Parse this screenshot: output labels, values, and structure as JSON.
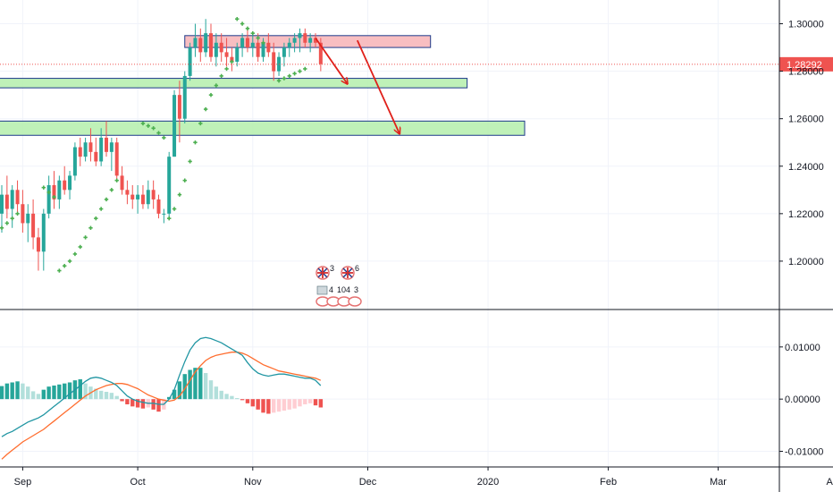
{
  "chart_data": [
    {
      "type": "candlestick",
      "pane": "price",
      "y_range": [
        1.18,
        1.31
      ],
      "y_ticks": [
        "1.30000",
        "1.28000",
        "1.26000",
        "1.24000",
        "1.22000",
        "1.20000"
      ],
      "y_tick_values": [
        1.3,
        1.28,
        1.26,
        1.24,
        1.22,
        1.2
      ],
      "last_price": "1.28292",
      "last_price_value": 1.28292,
      "candles": [
        {
          "o": 1.22,
          "h": 1.232,
          "l": 1.212,
          "c": 1.228
        },
        {
          "o": 1.228,
          "h": 1.236,
          "l": 1.218,
          "c": 1.222
        },
        {
          "o": 1.222,
          "h": 1.232,
          "l": 1.214,
          "c": 1.23
        },
        {
          "o": 1.23,
          "h": 1.234,
          "l": 1.22,
          "c": 1.224
        },
        {
          "o": 1.224,
          "h": 1.23,
          "l": 1.212,
          "c": 1.216
        },
        {
          "o": 1.216,
          "h": 1.224,
          "l": 1.208,
          "c": 1.22
        },
        {
          "o": 1.22,
          "h": 1.226,
          "l": 1.205,
          "c": 1.21
        },
        {
          "o": 1.21,
          "h": 1.214,
          "l": 1.196,
          "c": 1.204
        },
        {
          "o": 1.204,
          "h": 1.222,
          "l": 1.196,
          "c": 1.22
        },
        {
          "o": 1.22,
          "h": 1.236,
          "l": 1.218,
          "c": 1.232
        },
        {
          "o": 1.232,
          "h": 1.238,
          "l": 1.222,
          "c": 1.226
        },
        {
          "o": 1.226,
          "h": 1.236,
          "l": 1.222,
          "c": 1.234
        },
        {
          "o": 1.234,
          "h": 1.24,
          "l": 1.228,
          "c": 1.23
        },
        {
          "o": 1.23,
          "h": 1.238,
          "l": 1.226,
          "c": 1.236
        },
        {
          "o": 1.236,
          "h": 1.25,
          "l": 1.234,
          "c": 1.248
        },
        {
          "o": 1.248,
          "h": 1.252,
          "l": 1.24,
          "c": 1.244
        },
        {
          "o": 1.244,
          "h": 1.252,
          "l": 1.242,
          "c": 1.25
        },
        {
          "o": 1.25,
          "h": 1.256,
          "l": 1.242,
          "c": 1.246
        },
        {
          "o": 1.246,
          "h": 1.252,
          "l": 1.24,
          "c": 1.242
        },
        {
          "o": 1.242,
          "h": 1.256,
          "l": 1.24,
          "c": 1.252
        },
        {
          "o": 1.252,
          "h": 1.259,
          "l": 1.244,
          "c": 1.246
        },
        {
          "o": 1.246,
          "h": 1.252,
          "l": 1.238,
          "c": 1.25
        },
        {
          "o": 1.25,
          "h": 1.252,
          "l": 1.234,
          "c": 1.236
        },
        {
          "o": 1.236,
          "h": 1.24,
          "l": 1.228,
          "c": 1.23
        },
        {
          "o": 1.23,
          "h": 1.234,
          "l": 1.224,
          "c": 1.228
        },
        {
          "o": 1.228,
          "h": 1.232,
          "l": 1.222,
          "c": 1.226
        },
        {
          "o": 1.226,
          "h": 1.232,
          "l": 1.22,
          "c": 1.228
        },
        {
          "o": 1.228,
          "h": 1.232,
          "l": 1.222,
          "c": 1.224
        },
        {
          "o": 1.224,
          "h": 1.234,
          "l": 1.222,
          "c": 1.23
        },
        {
          "o": 1.23,
          "h": 1.234,
          "l": 1.222,
          "c": 1.226
        },
        {
          "o": 1.226,
          "h": 1.228,
          "l": 1.218,
          "c": 1.22
        },
        {
          "o": 1.22,
          "h": 1.222,
          "l": 1.216,
          "c": 1.22
        },
        {
          "o": 1.22,
          "h": 1.246,
          "l": 1.218,
          "c": 1.244
        },
        {
          "o": 1.244,
          "h": 1.272,
          "l": 1.244,
          "c": 1.27
        },
        {
          "o": 1.27,
          "h": 1.276,
          "l": 1.25,
          "c": 1.26
        },
        {
          "o": 1.26,
          "h": 1.28,
          "l": 1.258,
          "c": 1.278
        },
        {
          "o": 1.278,
          "h": 1.292,
          "l": 1.276,
          "c": 1.29
        },
        {
          "o": 1.29,
          "h": 1.3,
          "l": 1.286,
          "c": 1.294
        },
        {
          "o": 1.294,
          "h": 1.298,
          "l": 1.284,
          "c": 1.288
        },
        {
          "o": 1.288,
          "h": 1.302,
          "l": 1.286,
          "c": 1.296
        },
        {
          "o": 1.296,
          "h": 1.3,
          "l": 1.284,
          "c": 1.286
        },
        {
          "o": 1.286,
          "h": 1.296,
          "l": 1.282,
          "c": 1.292
        },
        {
          "o": 1.292,
          "h": 1.296,
          "l": 1.284,
          "c": 1.288
        },
        {
          "o": 1.288,
          "h": 1.294,
          "l": 1.282,
          "c": 1.286
        },
        {
          "o": 1.286,
          "h": 1.29,
          "l": 1.28,
          "c": 1.284
        },
        {
          "o": 1.284,
          "h": 1.292,
          "l": 1.282,
          "c": 1.29
        },
        {
          "o": 1.29,
          "h": 1.296,
          "l": 1.286,
          "c": 1.294
        },
        {
          "o": 1.294,
          "h": 1.298,
          "l": 1.288,
          "c": 1.29
        },
        {
          "o": 1.29,
          "h": 1.296,
          "l": 1.286,
          "c": 1.292
        },
        {
          "o": 1.292,
          "h": 1.296,
          "l": 1.284,
          "c": 1.286
        },
        {
          "o": 1.286,
          "h": 1.294,
          "l": 1.284,
          "c": 1.292
        },
        {
          "o": 1.292,
          "h": 1.296,
          "l": 1.286,
          "c": 1.288
        },
        {
          "o": 1.288,
          "h": 1.292,
          "l": 1.276,
          "c": 1.28
        },
        {
          "o": 1.28,
          "h": 1.288,
          "l": 1.278,
          "c": 1.286
        },
        {
          "o": 1.286,
          "h": 1.292,
          "l": 1.282,
          "c": 1.29
        },
        {
          "o": 1.29,
          "h": 1.294,
          "l": 1.286,
          "c": 1.292
        },
        {
          "o": 1.292,
          "h": 1.296,
          "l": 1.288,
          "c": 1.294
        },
        {
          "o": 1.294,
          "h": 1.298,
          "l": 1.288,
          "c": 1.296
        },
        {
          "o": 1.296,
          "h": 1.298,
          "l": 1.29,
          "c": 1.292
        },
        {
          "o": 1.292,
          "h": 1.296,
          "l": 1.288,
          "c": 1.294
        },
        {
          "o": 1.294,
          "h": 1.296,
          "l": 1.29,
          "c": 1.292
        },
        {
          "o": 1.292,
          "h": 1.294,
          "l": 1.28,
          "c": 1.283
        }
      ],
      "parabolic_sar": [
        {
          "i": 0,
          "v": 1.214
        },
        {
          "i": 1,
          "v": 1.216
        },
        {
          "i": 2,
          "v": 1.218
        },
        {
          "i": 3,
          "v": 1.22
        },
        {
          "i": 8,
          "v": 1.231
        },
        {
          "i": 9,
          "v": 1.229
        },
        {
          "i": 10,
          "v": 1.227
        },
        {
          "i": 11,
          "v": 1.196
        },
        {
          "i": 12,
          "v": 1.198
        },
        {
          "i": 13,
          "v": 1.2
        },
        {
          "i": 14,
          "v": 1.203
        },
        {
          "i": 15,
          "v": 1.206
        },
        {
          "i": 16,
          "v": 1.21
        },
        {
          "i": 17,
          "v": 1.214
        },
        {
          "i": 18,
          "v": 1.218
        },
        {
          "i": 19,
          "v": 1.222
        },
        {
          "i": 20,
          "v": 1.226
        },
        {
          "i": 21,
          "v": 1.23
        },
        {
          "i": 22,
          "v": 1.234
        },
        {
          "i": 27,
          "v": 1.258
        },
        {
          "i": 28,
          "v": 1.257
        },
        {
          "i": 29,
          "v": 1.256
        },
        {
          "i": 30,
          "v": 1.254
        },
        {
          "i": 31,
          "v": 1.252
        },
        {
          "i": 32,
          "v": 1.218
        },
        {
          "i": 33,
          "v": 1.222
        },
        {
          "i": 34,
          "v": 1.228
        },
        {
          "i": 35,
          "v": 1.234
        },
        {
          "i": 36,
          "v": 1.242
        },
        {
          "i": 37,
          "v": 1.25
        },
        {
          "i": 38,
          "v": 1.258
        },
        {
          "i": 39,
          "v": 1.264
        },
        {
          "i": 40,
          "v": 1.27
        },
        {
          "i": 41,
          "v": 1.274
        },
        {
          "i": 42,
          "v": 1.278
        },
        {
          "i": 43,
          "v": 1.281
        },
        {
          "i": 44,
          "v": 1.284
        },
        {
          "i": 45,
          "v": 1.302
        },
        {
          "i": 46,
          "v": 1.3
        },
        {
          "i": 47,
          "v": 1.298
        },
        {
          "i": 48,
          "v": 1.296
        },
        {
          "i": 49,
          "v": 1.294
        },
        {
          "i": 50,
          "v": 1.292
        },
        {
          "i": 53,
          "v": 1.276
        },
        {
          "i": 54,
          "v": 1.277
        },
        {
          "i": 55,
          "v": 1.278
        },
        {
          "i": 56,
          "v": 1.279
        },
        {
          "i": 57,
          "v": 1.28
        },
        {
          "i": 58,
          "v": 1.281
        }
      ],
      "zones": [
        {
          "name": "resistance",
          "kind": "red",
          "top": 1.295,
          "bottom": 1.29,
          "from_i": 35,
          "to_i": 82
        },
        {
          "name": "support-1",
          "kind": "green",
          "top": 1.277,
          "bottom": 1.273,
          "from_i": -6,
          "to_i": 89
        },
        {
          "name": "support-2",
          "kind": "green",
          "top": 1.259,
          "bottom": 1.253,
          "from_i": -6,
          "to_i": 100
        }
      ],
      "arrows": [
        {
          "from_i": 60,
          "from_v": 1.294,
          "to_i": 66,
          "to_v": 1.275
        },
        {
          "from_i": 68,
          "from_v": 1.293,
          "to_i": 76,
          "to_v": 1.254
        }
      ],
      "events": [
        {
          "label": "3",
          "kind": "flag"
        },
        {
          "label": "6",
          "kind": "flag"
        },
        {
          "label": "4",
          "kind": "group"
        },
        {
          "label": "104",
          "kind": "group"
        },
        {
          "label": "3",
          "kind": "group"
        }
      ]
    },
    {
      "type": "macd",
      "pane": "oscillator",
      "y_range": [
        -0.013,
        0.017
      ],
      "y_ticks": [
        "0.01000",
        "0.00000",
        "-0.01000"
      ],
      "y_tick_values": [
        0.01,
        0.0,
        -0.01
      ],
      "histogram": [
        0.0025,
        0.003,
        0.0032,
        0.0034,
        0.003,
        0.0024,
        0.0015,
        0.001,
        0.0018,
        0.0024,
        0.0026,
        0.0028,
        0.003,
        0.0032,
        0.0036,
        0.0038,
        0.003,
        0.0024,
        0.002,
        0.0016,
        0.0014,
        0.0012,
        0.0006,
        -0.0004,
        -0.001,
        -0.0014,
        -0.0016,
        -0.0018,
        -0.0016,
        -0.002,
        -0.0024,
        -0.002,
        0.0004,
        0.0018,
        0.0034,
        0.0048,
        0.0056,
        0.006,
        0.006,
        0.005,
        0.0036,
        0.0024,
        0.0016,
        0.001,
        0.0006,
        0.0002,
        -0.0002,
        -0.0008,
        -0.0014,
        -0.002,
        -0.0026,
        -0.0028,
        -0.0026,
        -0.0024,
        -0.0022,
        -0.002,
        -0.0018,
        -0.0014,
        -0.001,
        -0.0008,
        -0.0012,
        -0.0016
      ],
      "macd_line": [
        -0.0072,
        -0.0066,
        -0.0062,
        -0.0056,
        -0.005,
        -0.0044,
        -0.004,
        -0.0036,
        -0.003,
        -0.0022,
        -0.0014,
        -0.0006,
        0.0002,
        0.001,
        0.0018,
        0.0026,
        0.0034,
        0.004,
        0.0042,
        0.004,
        0.0036,
        0.0032,
        0.0026,
        0.0016,
        0.0006,
        0.0,
        -0.0004,
        -0.0006,
        -0.0008,
        -0.0008,
        -0.001,
        -0.001,
        0.0,
        0.0018,
        0.0046,
        0.0072,
        0.0094,
        0.0108,
        0.0116,
        0.0118,
        0.0116,
        0.0112,
        0.0108,
        0.0102,
        0.0096,
        0.009,
        0.0084,
        0.007,
        0.0058,
        0.005,
        0.0046,
        0.0044,
        0.0046,
        0.0048,
        0.0048,
        0.0046,
        0.0044,
        0.0042,
        0.004,
        0.004,
        0.0036,
        0.0026
      ],
      "signal_line": [
        -0.0115,
        -0.0106,
        -0.0098,
        -0.009,
        -0.0082,
        -0.0076,
        -0.007,
        -0.0064,
        -0.0058,
        -0.005,
        -0.0042,
        -0.0034,
        -0.0026,
        -0.0018,
        -0.001,
        -0.0002,
        0.0006,
        0.0012,
        0.0018,
        0.0022,
        0.0026,
        0.0028,
        0.003,
        0.003,
        0.0028,
        0.0024,
        0.002,
        0.0014,
        0.0008,
        0.0004,
        0.0,
        -0.0002,
        -0.0004,
        -0.0002,
        0.0006,
        0.002,
        0.0036,
        0.0052,
        0.0064,
        0.0074,
        0.008,
        0.0084,
        0.0086,
        0.0088,
        0.009,
        0.009,
        0.0088,
        0.0084,
        0.0078,
        0.0072,
        0.0066,
        0.0062,
        0.0058,
        0.0054,
        0.0052,
        0.005,
        0.0048,
        0.0046,
        0.0044,
        0.0042,
        0.004,
        0.0036
      ]
    }
  ],
  "x_axis": {
    "labels": [
      {
        "text": "Sep",
        "i": 4
      },
      {
        "text": "Oct",
        "i": 26
      },
      {
        "text": "Nov",
        "i": 48
      },
      {
        "text": "Dec",
        "i": 70
      },
      {
        "text": "2020",
        "i": 93
      },
      {
        "text": "Feb",
        "i": 116
      },
      {
        "text": "Mar",
        "i": 137
      },
      {
        "text": "Ap",
        "i": 160
      }
    ]
  },
  "colors": {
    "up": "#26a69a",
    "down": "#ef5350",
    "sar": "#4caf50",
    "grid": "#f0f3fa",
    "red_zone_fill": "#f7b7ba",
    "green_zone_fill": "#b8f0b0",
    "zone_border": "#1e3a8a",
    "arrow": "#e0201a",
    "price_tag": "#ef5350",
    "macd": "#2196a3",
    "signal": "#ff6d2e",
    "hist_up_strong": "#26a69a",
    "hist_up_weak": "#b2dfdb",
    "hist_down_strong": "#ef5350",
    "hist_down_weak": "#ffcdd2",
    "axis_text": "#131722",
    "separator": "#131722"
  }
}
